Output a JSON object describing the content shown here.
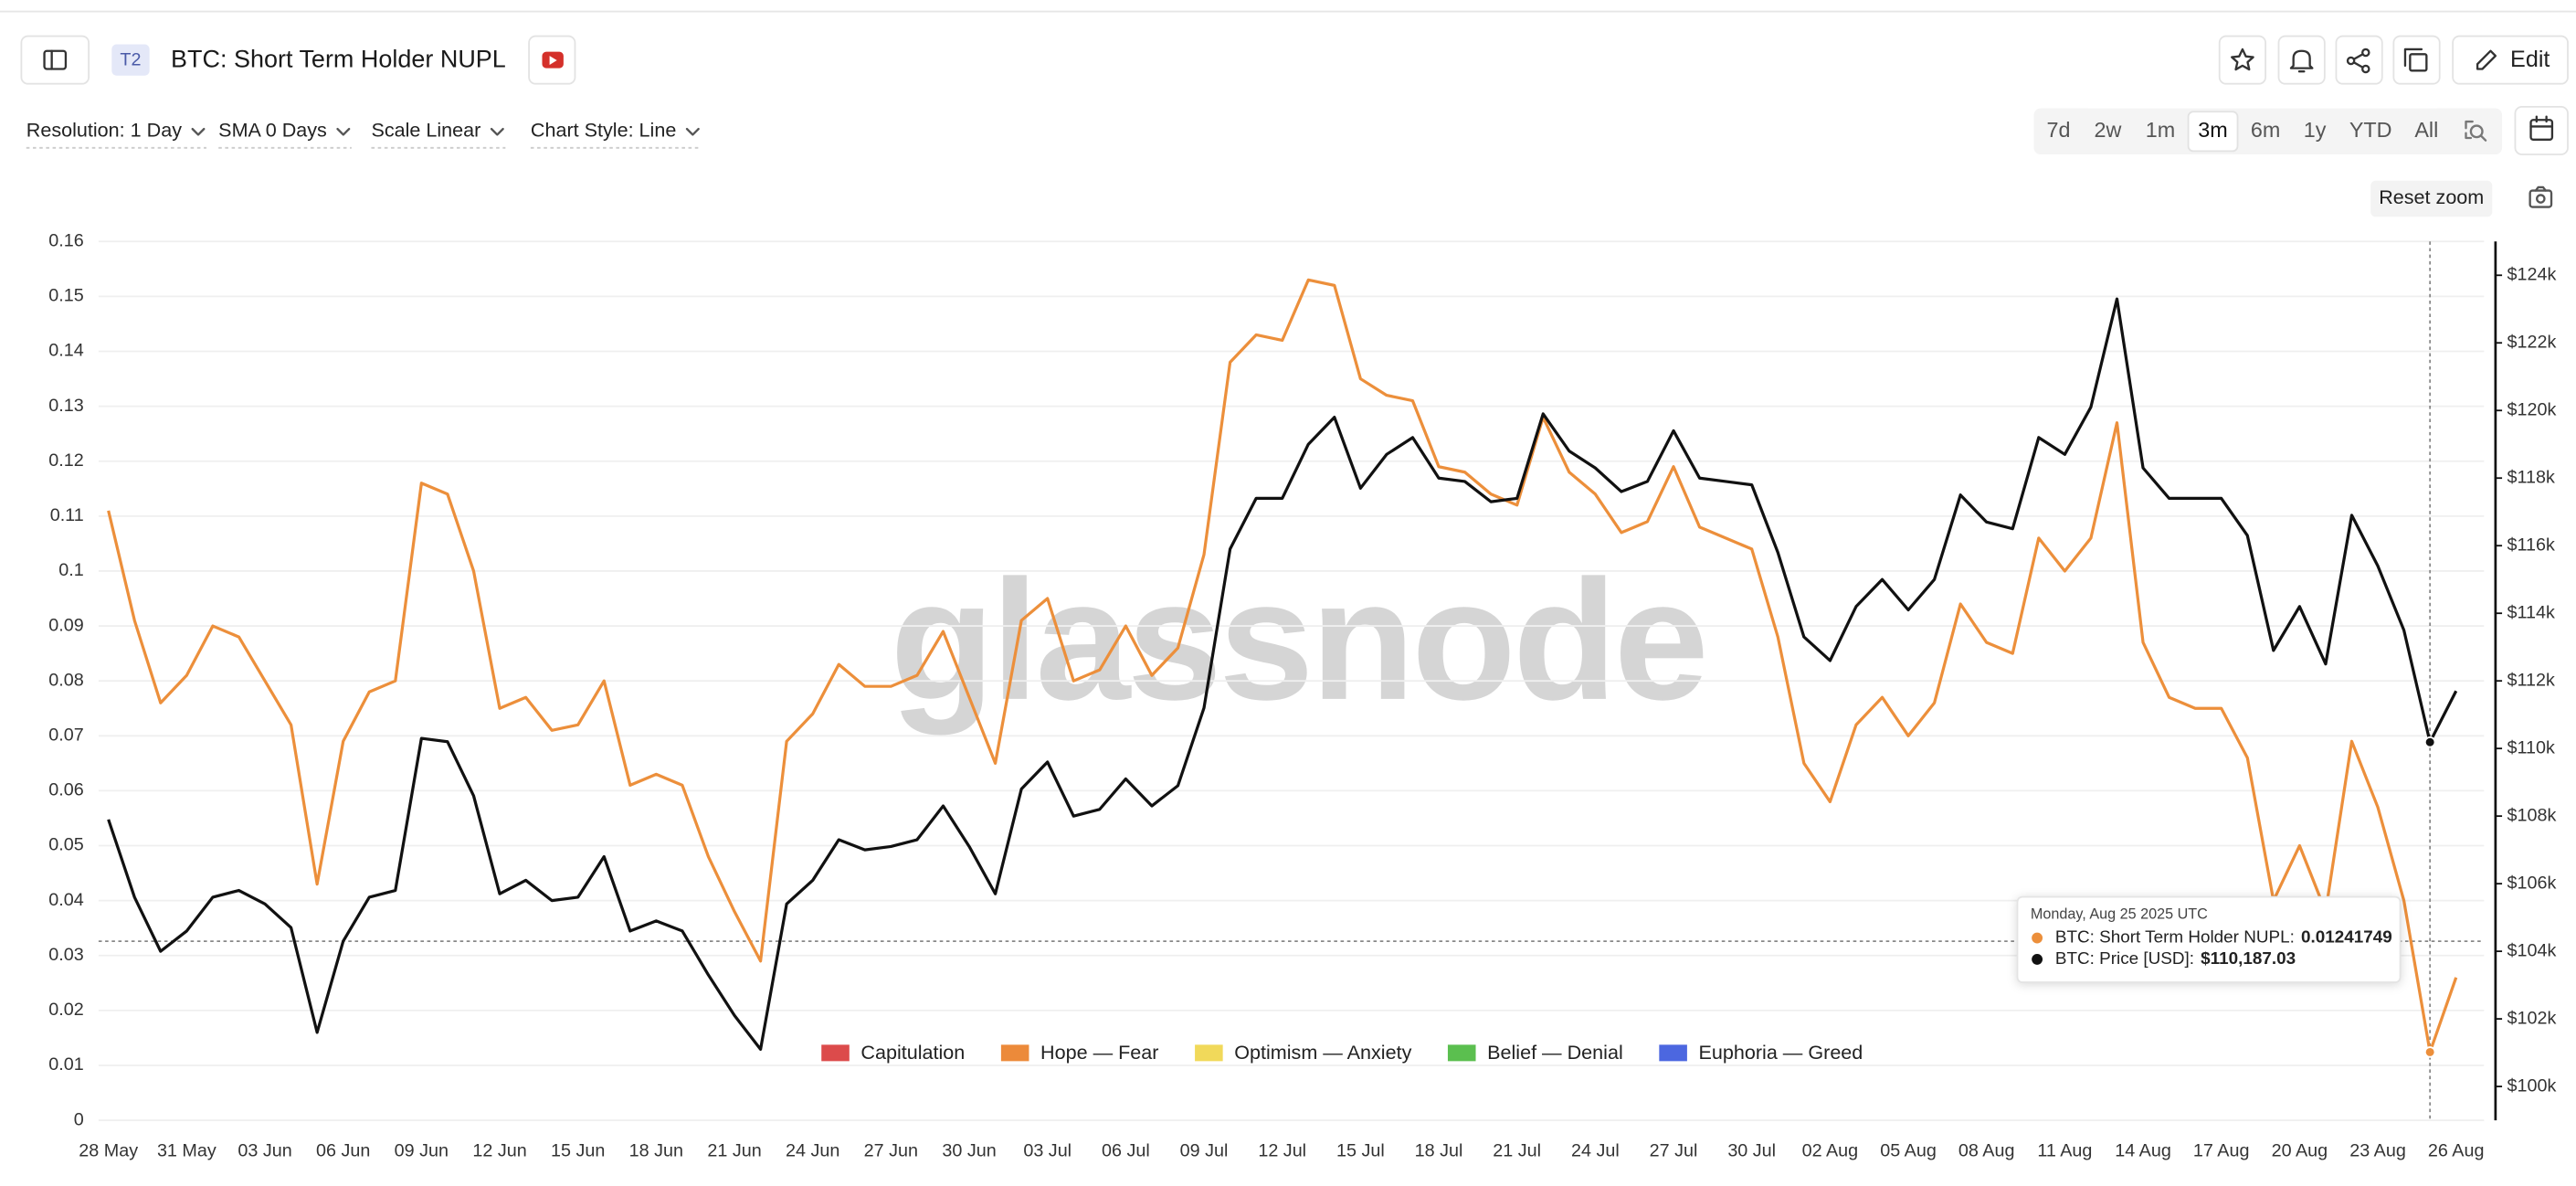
{
  "header": {
    "badge": "T2",
    "title": "BTC: Short Term Holder NUPL",
    "edit": "Edit"
  },
  "toolbar": {
    "dropdowns": [
      "Resolution: 1 Day",
      "SMA 0 Days",
      "Scale Linear",
      "Chart Style: Line"
    ],
    "ranges": [
      "7d",
      "2w",
      "1m",
      "3m",
      "6m",
      "1y",
      "YTD",
      "All"
    ],
    "reset_zoom": "Reset zoom"
  },
  "chart_data": {
    "type": "line",
    "watermark": "glassnode",
    "categories": [
      "28 May",
      null,
      null,
      "31 May",
      null,
      null,
      "03 Jun",
      null,
      null,
      "06 Jun",
      null,
      null,
      "09 Jun",
      null,
      null,
      "12 Jun",
      null,
      null,
      "15 Jun",
      null,
      null,
      "18 Jun",
      null,
      null,
      "21 Jun",
      null,
      null,
      "24 Jun",
      null,
      null,
      "27 Jun",
      null,
      null,
      "30 Jun",
      null,
      null,
      "03 Jul",
      null,
      null,
      "06 Jul",
      null,
      null,
      "09 Jul",
      null,
      null,
      "12 Jul",
      null,
      null,
      "15 Jul",
      null,
      null,
      "18 Jul",
      null,
      null,
      "21 Jul",
      null,
      null,
      "24 Jul",
      null,
      null,
      "27 Jul",
      null,
      null,
      "30 Jul",
      null,
      null,
      "02 Aug",
      null,
      null,
      "05 Aug",
      null,
      null,
      "08 Aug",
      null,
      null,
      "11 Aug",
      null,
      null,
      "14 Aug",
      null,
      null,
      "17 Aug",
      null,
      null,
      "20 Aug",
      null,
      null,
      "23 Aug",
      null,
      null,
      "26 Aug"
    ],
    "series": [
      {
        "name": "BTC: Short Term Holder NUPL",
        "color": "#ec8f3b",
        "values": [
          0.111,
          0.091,
          0.076,
          0.081,
          0.09,
          0.088,
          0.08,
          0.072,
          0.043,
          0.069,
          0.078,
          0.08,
          0.116,
          0.114,
          0.1,
          0.075,
          0.077,
          0.071,
          0.072,
          0.08,
          0.061,
          0.063,
          0.061,
          0.048,
          0.038,
          0.029,
          0.069,
          0.074,
          0.083,
          0.079,
          0.079,
          0.081,
          0.089,
          0.077,
          0.065,
          0.091,
          0.095,
          0.08,
          0.082,
          0.09,
          0.081,
          0.086,
          0.103,
          0.138,
          0.143,
          0.142,
          0.153,
          0.152,
          0.135,
          0.132,
          0.131,
          0.119,
          0.118,
          0.114,
          0.112,
          0.128,
          0.118,
          0.114,
          0.107,
          0.109,
          0.119,
          0.108,
          0.106,
          0.104,
          0.088,
          0.065,
          0.058,
          0.072,
          0.077,
          0.07,
          0.076,
          0.094,
          0.087,
          0.085,
          0.106,
          0.1,
          0.106,
          0.127,
          0.087,
          0.077,
          0.075,
          0.075,
          0.066,
          0.04,
          0.05,
          0.038,
          0.069,
          0.057,
          0.04,
          0.01241749,
          0.026
        ]
      },
      {
        "name": "BTC: Price [USD]",
        "color": "#111111",
        "axis": "y2",
        "values": [
          107900,
          105600,
          104000,
          104600,
          105600,
          105800,
          105400,
          104700,
          101600,
          104300,
          105600,
          105800,
          110300,
          110200,
          108600,
          105700,
          106100,
          105500,
          105600,
          106800,
          104600,
          104900,
          104600,
          103300,
          102100,
          101100,
          105400,
          106100,
          107300,
          107000,
          107100,
          107300,
          108300,
          107100,
          105700,
          108800,
          109600,
          108000,
          108200,
          109100,
          108300,
          108900,
          111200,
          115900,
          117400,
          117400,
          119000,
          119800,
          117700,
          118700,
          119200,
          118000,
          117900,
          117300,
          117400,
          119900,
          118800,
          118300,
          117600,
          117900,
          119400,
          118000,
          117900,
          117800,
          115800,
          113300,
          112600,
          114200,
          115000,
          114100,
          115000,
          117500,
          116700,
          116500,
          119200,
          118700,
          120100,
          123300,
          118300,
          117400,
          117400,
          117400,
          116300,
          112900,
          114200,
          112500,
          116900,
          115400,
          113500,
          110187.03,
          111700
        ],
        "value_labels": [
          null,
          null,
          null,
          null,
          null,
          null,
          null,
          null,
          null,
          null,
          null,
          null,
          null,
          null,
          null,
          null,
          null,
          null,
          null,
          null,
          null,
          null,
          null,
          null,
          null,
          null,
          null,
          null,
          null,
          null,
          null,
          null,
          null,
          null,
          null,
          null,
          null,
          null,
          null,
          null,
          null,
          null,
          null,
          null,
          null,
          null,
          null,
          null,
          null,
          null,
          null,
          null,
          null,
          null,
          null,
          null,
          null,
          null,
          null,
          null,
          null,
          null,
          null,
          null,
          null,
          null,
          null,
          null,
          null,
          null,
          null,
          null,
          null,
          null,
          null,
          null,
          null,
          null,
          null,
          null,
          null,
          null,
          null,
          null,
          null,
          null,
          null,
          null,
          null,
          "$110,187.03",
          null
        ]
      }
    ],
    "ylim": [
      0,
      0.16
    ],
    "yticks": [
      0,
      0.01,
      0.02,
      0.03,
      0.04,
      0.05,
      0.06,
      0.07,
      0.08,
      0.09,
      0.1,
      0.11,
      0.12,
      0.13,
      0.14,
      0.15,
      0.16
    ],
    "y2lim": [
      99000,
      125000
    ],
    "y2ticks": [
      {
        "value": 100000,
        "label": "$100k"
      },
      {
        "value": 102000,
        "label": "$102k"
      },
      {
        "value": 104000,
        "label": "$104k"
      },
      {
        "value": 106000,
        "label": "$106k"
      },
      {
        "value": 108000,
        "label": "$108k"
      },
      {
        "value": 110000,
        "label": "$110k"
      },
      {
        "value": 112000,
        "label": "$112k"
      },
      {
        "value": 114000,
        "label": "$114k"
      },
      {
        "value": 116000,
        "label": "$116k"
      },
      {
        "value": 118000,
        "label": "$118k"
      },
      {
        "value": 120000,
        "label": "$120k"
      },
      {
        "value": 122000,
        "label": "$122k"
      },
      {
        "value": 124000,
        "label": "$124k"
      }
    ],
    "grid": true,
    "zones": [
      {
        "name": "Capitulation",
        "color": "#dc4b4b"
      },
      {
        "name": "Hope — Fear",
        "color": "#ec8a3a"
      },
      {
        "name": "Optimism — Anxiety",
        "color": "#f1d95a"
      },
      {
        "name": "Belief — Denial",
        "color": "#5bbf4f"
      },
      {
        "name": "Euphoria — Greed",
        "color": "#4c67e0"
      }
    ],
    "tooltip": {
      "title": "Monday, Aug 25 2025 UTC",
      "separator": ":"
    }
  }
}
